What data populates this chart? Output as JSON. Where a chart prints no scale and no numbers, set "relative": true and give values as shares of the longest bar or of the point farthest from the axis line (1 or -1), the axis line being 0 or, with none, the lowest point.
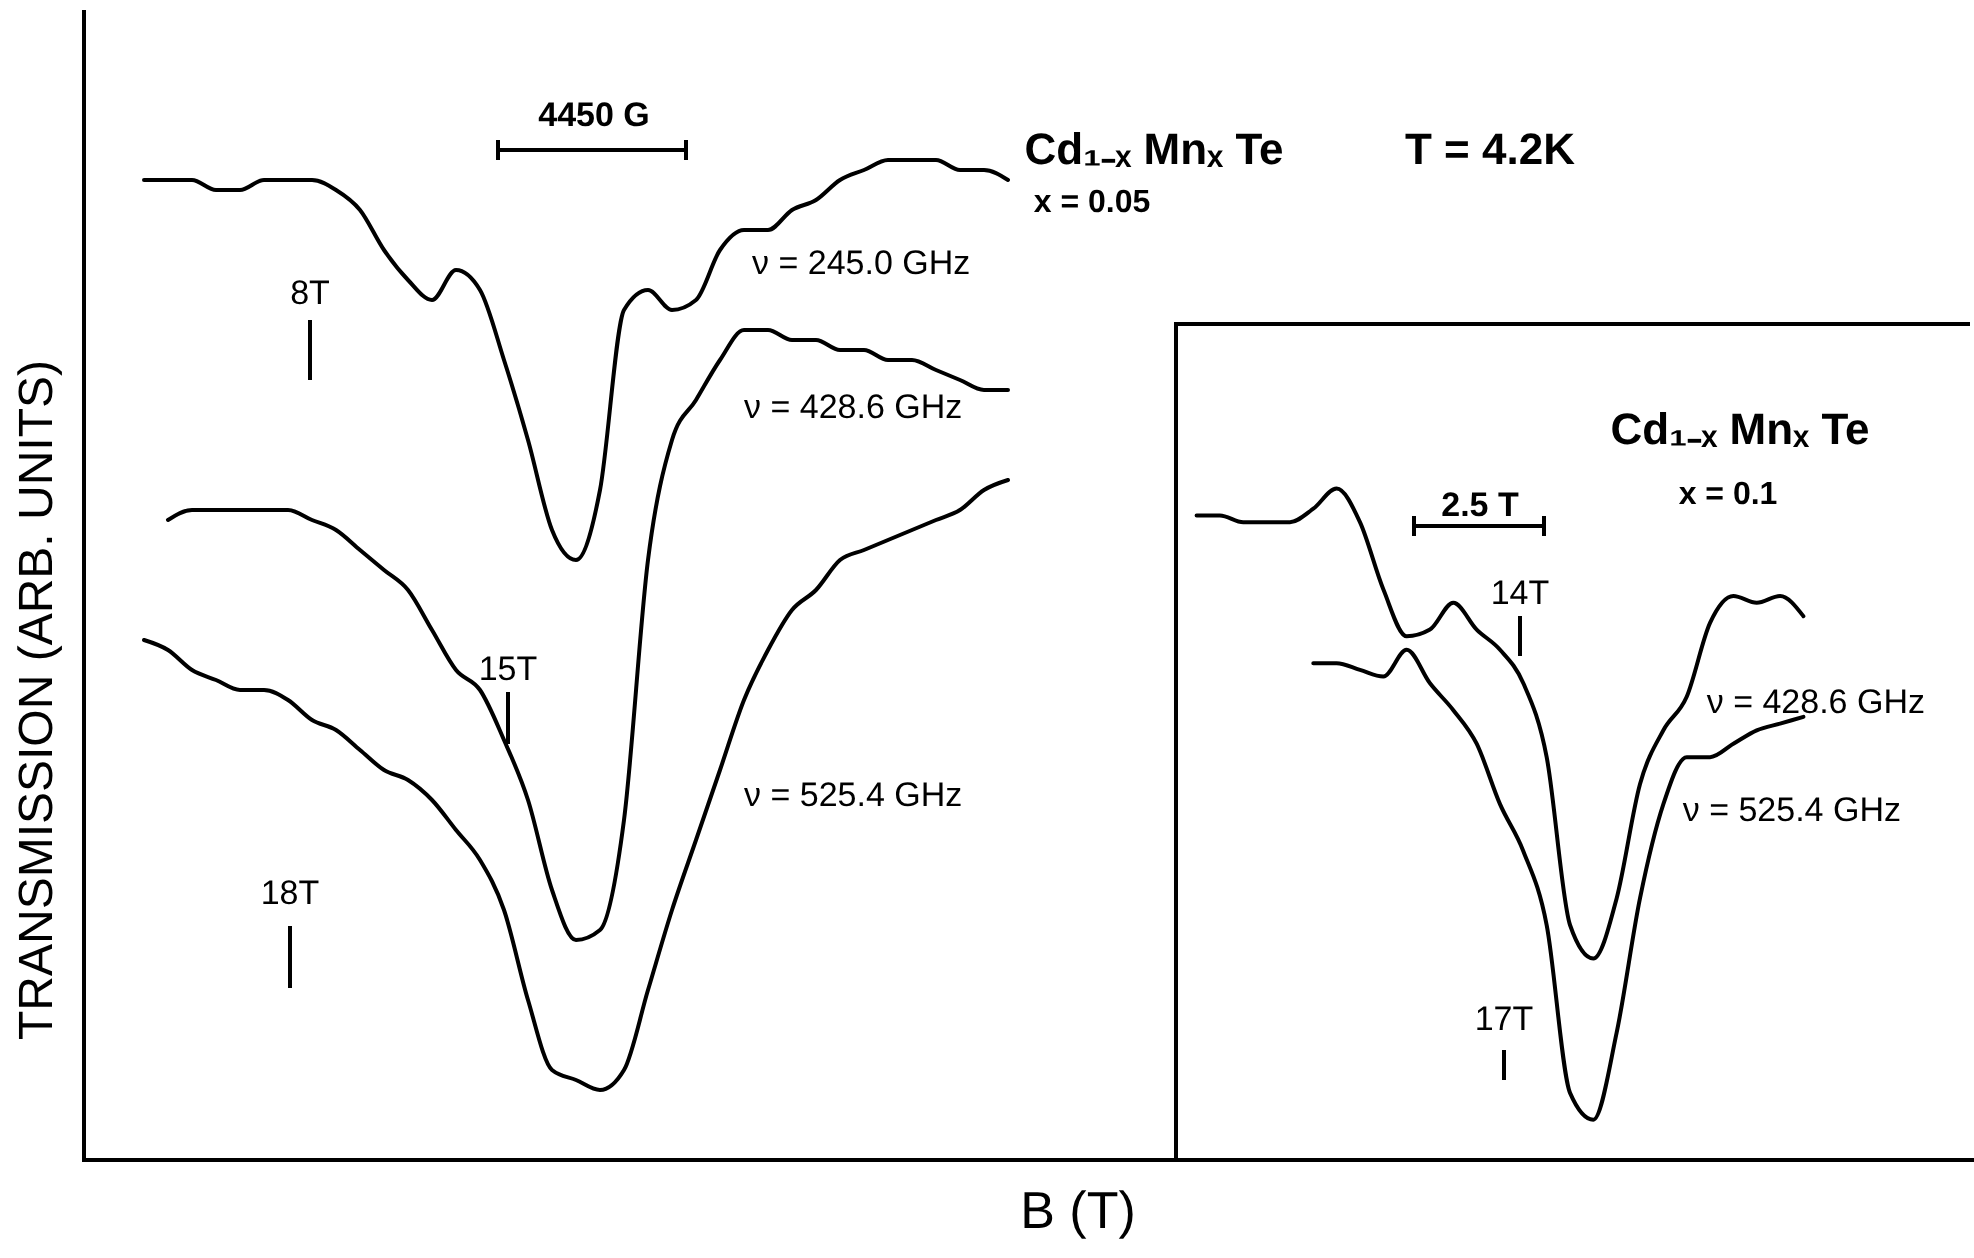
{
  "chart_data": [
    {
      "type": "line",
      "relative": true,
      "title": "Cd₁₋ₓ Mnₓ Te",
      "subtitle": "x = 0.05",
      "xlabel": "B (T)",
      "ylabel": "TRANSMISSION (ARB. UNITS)",
      "annotations": [
        "4450 G",
        "T = 4.2K",
        "8T",
        "15T",
        "18T"
      ],
      "categories": [
        null,
        null,
        null,
        null,
        null,
        null,
        null,
        null,
        null,
        null,
        null,
        null,
        null,
        null,
        null,
        null,
        null,
        null,
        null,
        null,
        null,
        null,
        null,
        null,
        null,
        null,
        null,
        null,
        null,
        null,
        null,
        null,
        null,
        null,
        null,
        null,
        null,
        null,
        null
      ],
      "series": [
        {
          "name": "ν = 245.0 GHz",
          "color": "#000000",
          "values": [
            null,
            0.98,
            0.98,
            0.98,
            0.97,
            0.97,
            0.98,
            0.98,
            0.98,
            0.97,
            0.95,
            0.91,
            0.88,
            0.86,
            0.89,
            0.87,
            0.8,
            0.72,
            0.63,
            0.6,
            0.67,
            0.85,
            0.87,
            0.85,
            0.86,
            0.91,
            0.93,
            0.93,
            0.95,
            0.96,
            0.98,
            0.99,
            1.0,
            1.0,
            1.0,
            0.99,
            0.99,
            0.98,
            null
          ]
        },
        {
          "name": "ν = 428.6 GHz",
          "color": "#000000",
          "values": [
            null,
            null,
            0.64,
            0.65,
            0.65,
            0.65,
            0.65,
            0.65,
            0.64,
            0.63,
            0.61,
            0.59,
            0.57,
            0.53,
            0.49,
            0.47,
            0.42,
            0.36,
            0.27,
            0.22,
            0.23,
            0.34,
            0.6,
            0.72,
            0.76,
            0.8,
            0.83,
            0.83,
            0.82,
            0.82,
            0.81,
            0.81,
            0.8,
            0.8,
            0.79,
            0.78,
            0.77,
            0.77,
            null
          ]
        },
        {
          "name": "ν = 525.4 GHz",
          "color": "#000000",
          "values": [
            null,
            0.52,
            0.51,
            0.49,
            0.48,
            0.47,
            0.47,
            0.46,
            0.44,
            0.43,
            0.41,
            0.39,
            0.38,
            0.36,
            0.33,
            0.3,
            0.25,
            0.16,
            0.09,
            0.08,
            0.07,
            0.09,
            0.17,
            0.25,
            0.32,
            0.39,
            0.46,
            0.51,
            0.55,
            0.57,
            0.6,
            0.61,
            0.62,
            0.63,
            0.64,
            0.65,
            0.67,
            0.68,
            null
          ]
        }
      ]
    },
    {
      "type": "line",
      "relative": true,
      "title": "Cd₁₋ₓ Mnₓ Te",
      "subtitle": "x = 0.1",
      "annotations": [
        "2.5 T",
        "14T",
        "17T"
      ],
      "categories": [
        null,
        null,
        null,
        null,
        null,
        null,
        null,
        null,
        null,
        null,
        null,
        null,
        null,
        null,
        null,
        null,
        null,
        null,
        null,
        null,
        null,
        null,
        null,
        null,
        null,
        null,
        null
      ],
      "series": [
        {
          "name": "ν = 428.6 GHz",
          "color": "#000000",
          "values": [
            0.96,
            0.96,
            0.95,
            0.95,
            0.95,
            0.97,
            1.0,
            0.95,
            0.85,
            0.78,
            0.79,
            0.83,
            0.79,
            0.76,
            0.71,
            0.6,
            0.35,
            0.3,
            0.39,
            0.56,
            0.64,
            0.69,
            0.8,
            0.84,
            0.83,
            0.84,
            0.81
          ]
        },
        {
          "name": "ν = 525.4 GHz",
          "color": "#000000",
          "values": [
            null,
            null,
            null,
            null,
            null,
            0.74,
            0.74,
            0.73,
            0.72,
            0.76,
            0.71,
            0.67,
            0.62,
            0.53,
            0.46,
            0.35,
            0.1,
            0.06,
            0.19,
            0.39,
            0.53,
            0.6,
            0.6,
            0.62,
            0.64,
            0.65,
            0.66
          ]
        }
      ]
    }
  ]
}
